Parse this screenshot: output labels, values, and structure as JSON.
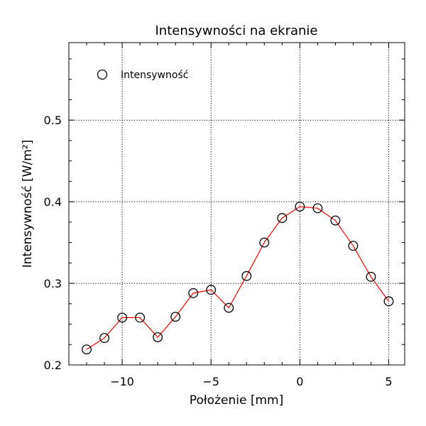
{
  "chart_data": {
    "type": "line",
    "title": "Intensywności na ekranie",
    "xlabel": "Położenie [mm]",
    "ylabel": "Intensywność [W/m²]",
    "xlim": [
      -13,
      5.9
    ],
    "ylim": [
      0.2,
      0.595
    ],
    "x_ticks": [
      {
        "value": -10,
        "label": "−10"
      },
      {
        "value": -5,
        "label": "−5"
      },
      {
        "value": 0,
        "label": "0"
      },
      {
        "value": 5,
        "label": "5"
      }
    ],
    "y_ticks": [
      {
        "value": 0.2,
        "label": "0.2"
      },
      {
        "value": 0.3,
        "label": "0.3"
      },
      {
        "value": 0.4,
        "label": "0.4"
      },
      {
        "value": 0.5,
        "label": "0.5"
      }
    ],
    "grid": true,
    "legend_position": "top-left",
    "series": [
      {
        "name": "Intensywność",
        "line_color": "#ff0000",
        "marker": "open-circle",
        "x": [
          -12,
          -11,
          -10,
          -9,
          -8,
          -7,
          -6,
          -5,
          -4,
          -3,
          -2,
          -1,
          0,
          1,
          2,
          3,
          4,
          5
        ],
        "y": [
          0.219,
          0.233,
          0.258,
          0.258,
          0.234,
          0.259,
          0.288,
          0.292,
          0.27,
          0.309,
          0.35,
          0.38,
          0.394,
          0.392,
          0.377,
          0.346,
          0.308,
          0.278
        ]
      }
    ]
  }
}
